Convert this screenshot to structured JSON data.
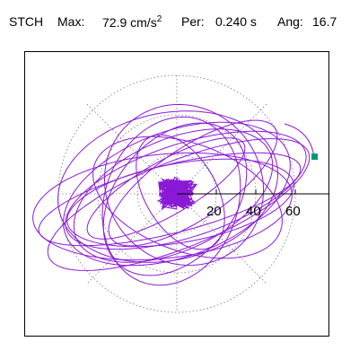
{
  "header": {
    "station": "STCH",
    "max_label": "Max:",
    "max_value": "72.9 cm/s",
    "max_exp": "2",
    "per_label": "Per:",
    "per_value": "0.240 s",
    "ang_label": "Ang:",
    "ang_value": "16.7"
  },
  "polar": {
    "radial_ticks": [
      "20",
      "40",
      "60"
    ],
    "grid_style": "dotted",
    "end_marker_color": "#009b77",
    "trace_color": "#8a19d6"
  }
}
